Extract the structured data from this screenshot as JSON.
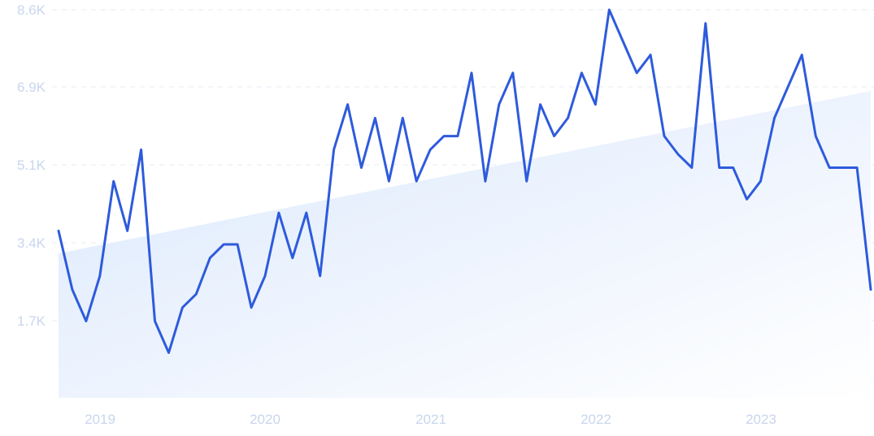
{
  "chart_data": {
    "type": "line",
    "title": "",
    "xlabel": "",
    "ylabel": "",
    "grid": true,
    "x_ticks": [
      "2019",
      "2020",
      "2021",
      "2022",
      "2023"
    ],
    "y_ticks": [
      "1.7K",
      "3.4K",
      "5.1K",
      "6.9K",
      "8.6K"
    ],
    "ylim": [
      0,
      8600
    ],
    "series": [
      {
        "values": [
          3700,
          2400,
          1700,
          2700,
          4800,
          3700,
          5500,
          1700,
          1000,
          2000,
          2300,
          3100,
          3400,
          3400,
          2000,
          2700,
          4100,
          3100,
          4100,
          2700,
          5500,
          6500,
          5100,
          6200,
          4800,
          6200,
          4800,
          5500,
          5800,
          5800,
          7200,
          4800,
          6500,
          7200,
          4800,
          6500,
          5800,
          6200,
          7200,
          6500,
          8600,
          7900,
          7200,
          7600,
          5800,
          5400,
          5100,
          8300,
          5100,
          5100,
          4400,
          4800,
          6200,
          6900,
          7600,
          5800,
          5100,
          5100,
          5100,
          2400
        ]
      }
    ],
    "trend": {
      "start_value": 3200,
      "end_value": 6800
    },
    "colors": {
      "line": "#2e5bdc",
      "fill_top": "#dfeafc",
      "fill_bottom": "#ffffff",
      "tick": "#c9d6ee",
      "grid": "#e6ebf3"
    }
  }
}
